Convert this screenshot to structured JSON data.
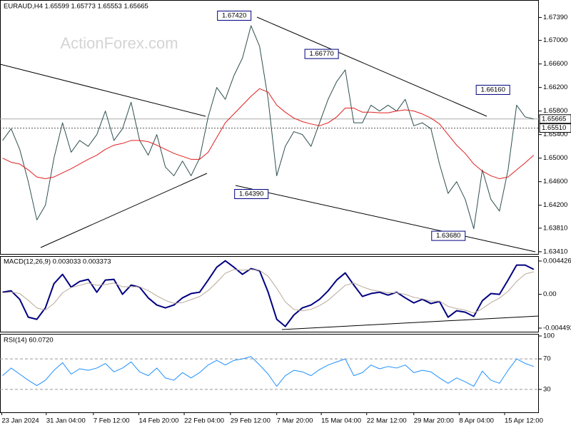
{
  "chart_data": [
    {
      "type": "line",
      "title": "EURAUD,H4 1.65599 1.65773 1.65553 1.65665",
      "watermark": "ActionForex.com",
      "xlim": [
        -0.3,
        62.6
      ],
      "ylim": [
        1.6336,
        1.6765
      ],
      "grid": false,
      "yticks": [
        {
          "value": 1.6739,
          "label": "1.67390"
        },
        {
          "value": 1.67,
          "label": "1.67000"
        },
        {
          "value": 1.666,
          "label": "1.66600"
        },
        {
          "value": 1.662,
          "label": "1.66200"
        },
        {
          "value": 1.658,
          "label": "1.65800"
        },
        {
          "value": 1.654,
          "label": "1.65400"
        },
        {
          "value": 1.65,
          "label": "1.65000"
        },
        {
          "value": 1.646,
          "label": "1.64600"
        },
        {
          "value": 1.642,
          "label": "1.64200"
        },
        {
          "value": 1.6381,
          "label": "1.63810"
        },
        {
          "value": 1.6341,
          "label": "1.63410"
        }
      ],
      "current_price": 1.65665,
      "level_line": {
        "value": 1.6551,
        "label": "1.65510"
      },
      "annotations": [
        {
          "value": 1.6742,
          "label": "1.67420",
          "x": 29
        },
        {
          "value": 1.6677,
          "label": "1.66770",
          "x": 39.2
        },
        {
          "value": 1.6616,
          "label": "1.66160",
          "x": 59.2
        },
        {
          "value": 1.6439,
          "label": "1.64390",
          "x": 31
        },
        {
          "value": 1.6368,
          "label": "1.63680",
          "x": 54
        }
      ],
      "series": [
        {
          "name": "EURAUD",
          "color": "#2f4f4f",
          "values": [
            1.653,
            1.655,
            1.6515,
            1.646,
            1.6395,
            1.642,
            1.65,
            1.656,
            1.651,
            1.653,
            1.652,
            1.654,
            1.658,
            1.653,
            1.655,
            1.6595,
            1.653,
            1.6505,
            1.654,
            1.6485,
            1.647,
            1.6495,
            1.647,
            1.65,
            1.657,
            1.662,
            1.66,
            1.664,
            1.667,
            1.6725,
            1.669,
            1.66,
            1.647,
            1.652,
            1.6545,
            1.654,
            1.652,
            1.656,
            1.66,
            1.663,
            1.665,
            1.656,
            1.656,
            1.659,
            1.658,
            1.659,
            1.658,
            1.66,
            1.6555,
            1.656,
            1.655,
            1.649,
            1.644,
            1.646,
            1.643,
            1.638,
            1.648,
            1.643,
            1.641,
            1.648,
            1.659,
            1.657,
            1.65665
          ]
        },
        {
          "name": "MA",
          "color": "#e02020",
          "values": [
            1.65,
            1.6493,
            1.649,
            1.648,
            1.6468,
            1.6465,
            1.6468,
            1.6475,
            1.6482,
            1.649,
            1.6498,
            1.6505,
            1.6515,
            1.6522,
            1.6525,
            1.653,
            1.653,
            1.6528,
            1.6522,
            1.6515,
            1.6508,
            1.6503,
            1.6498,
            1.6498,
            1.651,
            1.6535,
            1.656,
            1.6575,
            1.659,
            1.6605,
            1.6618,
            1.6612,
            1.659,
            1.6578,
            1.6568,
            1.6562,
            1.6558,
            1.6555,
            1.656,
            1.657,
            1.6585,
            1.6585,
            1.6578,
            1.6578,
            1.6577,
            1.6577,
            1.658,
            1.6582,
            1.658,
            1.6575,
            1.6568,
            1.6558,
            1.654,
            1.6522,
            1.6508,
            1.649,
            1.6478,
            1.647,
            1.6465,
            1.6468,
            1.648,
            1.6492,
            1.6505
          ]
        }
      ]
    },
    {
      "type": "line",
      "title": "MACD(12,26,9) 0.003033 0.003373",
      "xlim": [
        -0.3,
        62.6
      ],
      "ylim": [
        -0.00497,
        0.00499
      ],
      "grid": false,
      "yticks": [
        0.004426,
        {
          "value": 0,
          "label": "0.00"
        },
        -0.004493
      ],
      "series": [
        {
          "name": "MACD",
          "color": "#000080",
          "values": [
            0.00028,
            0.00047,
            -0.00066,
            -0.00304,
            -0.00332,
            -0.0018,
            0.00142,
            0.00266,
            0.00095,
            0.00171,
            0.00199,
            0.00028,
            0.0019,
            0.00199,
            0,
            0.00123,
            0.00095,
            -0.00047,
            -0.00142,
            -0.0018,
            -0.00142,
            -0.00047,
            0.0001,
            0.00028,
            0.0019,
            0.00361,
            0.00446,
            0.00361,
            0.00266,
            0.00342,
            0.00313,
            0.00028,
            -0.00332,
            -0.00427,
            -0.00275,
            -0.0018,
            -0.00142,
            -0.00066,
            0.00047,
            0.0019,
            0.00285,
            0.00123,
            -0.00028,
            0.0001,
            0.00028,
            -0.0001,
            0.00028,
            -0.00047,
            -0.00114,
            -0.00066,
            -0.00123,
            -0.00095,
            -0.00304,
            -0.00218,
            -0.00237,
            -0.00294,
            -0.00085,
            0.0001,
            0,
            0.0019,
            0.00389,
            0.00389,
            0.00332
          ]
        },
        {
          "name": "Signal",
          "color": "#b8a898",
          "values": [
            0.0002,
            0.0003,
            0.0001,
            -0.0008,
            -0.0018,
            -0.0021,
            -0.0012,
            0.0002,
            0.0009,
            0.0012,
            0.0015,
            0.0012,
            0.0013,
            0.0015,
            0.001,
            0.001,
            0.001,
            0.0005,
            -0.0002,
            -0.0008,
            -0.0012,
            -0.0011,
            -0.0007,
            -0.0003,
            0.0005,
            0.0016,
            0.0028,
            0.0033,
            0.0032,
            0.0033,
            0.0032,
            0.0024,
            0.0008,
            -0.001,
            -0.002,
            -0.0022,
            -0.002,
            -0.0015,
            -0.0008,
            0.0002,
            0.0012,
            0.0015,
            0.001,
            0.0006,
            0.0004,
            0.0002,
            0.0002,
            0,
            -0.0004,
            -0.0006,
            -0.0009,
            -0.0009,
            -0.0016,
            -0.0019,
            -0.0021,
            -0.0025,
            -0.0019,
            -0.0011,
            -0.0005,
            0.0004,
            0.0017,
            0.0027,
            0.003
          ]
        }
      ]
    },
    {
      "type": "line",
      "title": "RSI(14) 60.0720",
      "xlim": [
        -0.3,
        62.6
      ],
      "ylim": [
        0,
        100
      ],
      "grid": true,
      "yticks": [
        100,
        70,
        30
      ],
      "xticks": [
        {
          "value": -0.1,
          "label": "23 Jan 2024"
        },
        {
          "value": 5.1,
          "label": "31 Jan 04:00"
        },
        {
          "value": 10.6,
          "label": "7 Feb 12:00"
        },
        {
          "value": 15.9,
          "label": "14 Feb 20:00"
        },
        {
          "value": 21.2,
          "label": "22 Feb 04:00"
        },
        {
          "value": 26.6,
          "label": "29 Feb 12:00"
        },
        {
          "value": 32,
          "label": "7 Mar 20:00"
        },
        {
          "value": 37.2,
          "label": "15 Mar 04:00"
        },
        {
          "value": 42.5,
          "label": "22 Mar 12:00"
        },
        {
          "value": 48,
          "label": "29 Mar 20:00"
        },
        {
          "value": 53.3,
          "label": "8 Apr 04:00"
        },
        {
          "value": 58.6,
          "label": "15 Apr 12:00"
        }
      ],
      "series": [
        {
          "name": "RSI",
          "color": "#1e90ff",
          "values": [
            48,
            58,
            50,
            42,
            35,
            42,
            55,
            65,
            50,
            57,
            55,
            58,
            64,
            53,
            58,
            66,
            53,
            48,
            58,
            45,
            42,
            52,
            45,
            52,
            62,
            68,
            62,
            68,
            70,
            73,
            62,
            50,
            34,
            48,
            55,
            53,
            48,
            56,
            62,
            66,
            70,
            48,
            52,
            62,
            57,
            60,
            58,
            62,
            52,
            55,
            53,
            45,
            38,
            45,
            40,
            34,
            54,
            42,
            38,
            55,
            70,
            64,
            60
          ]
        }
      ]
    }
  ]
}
